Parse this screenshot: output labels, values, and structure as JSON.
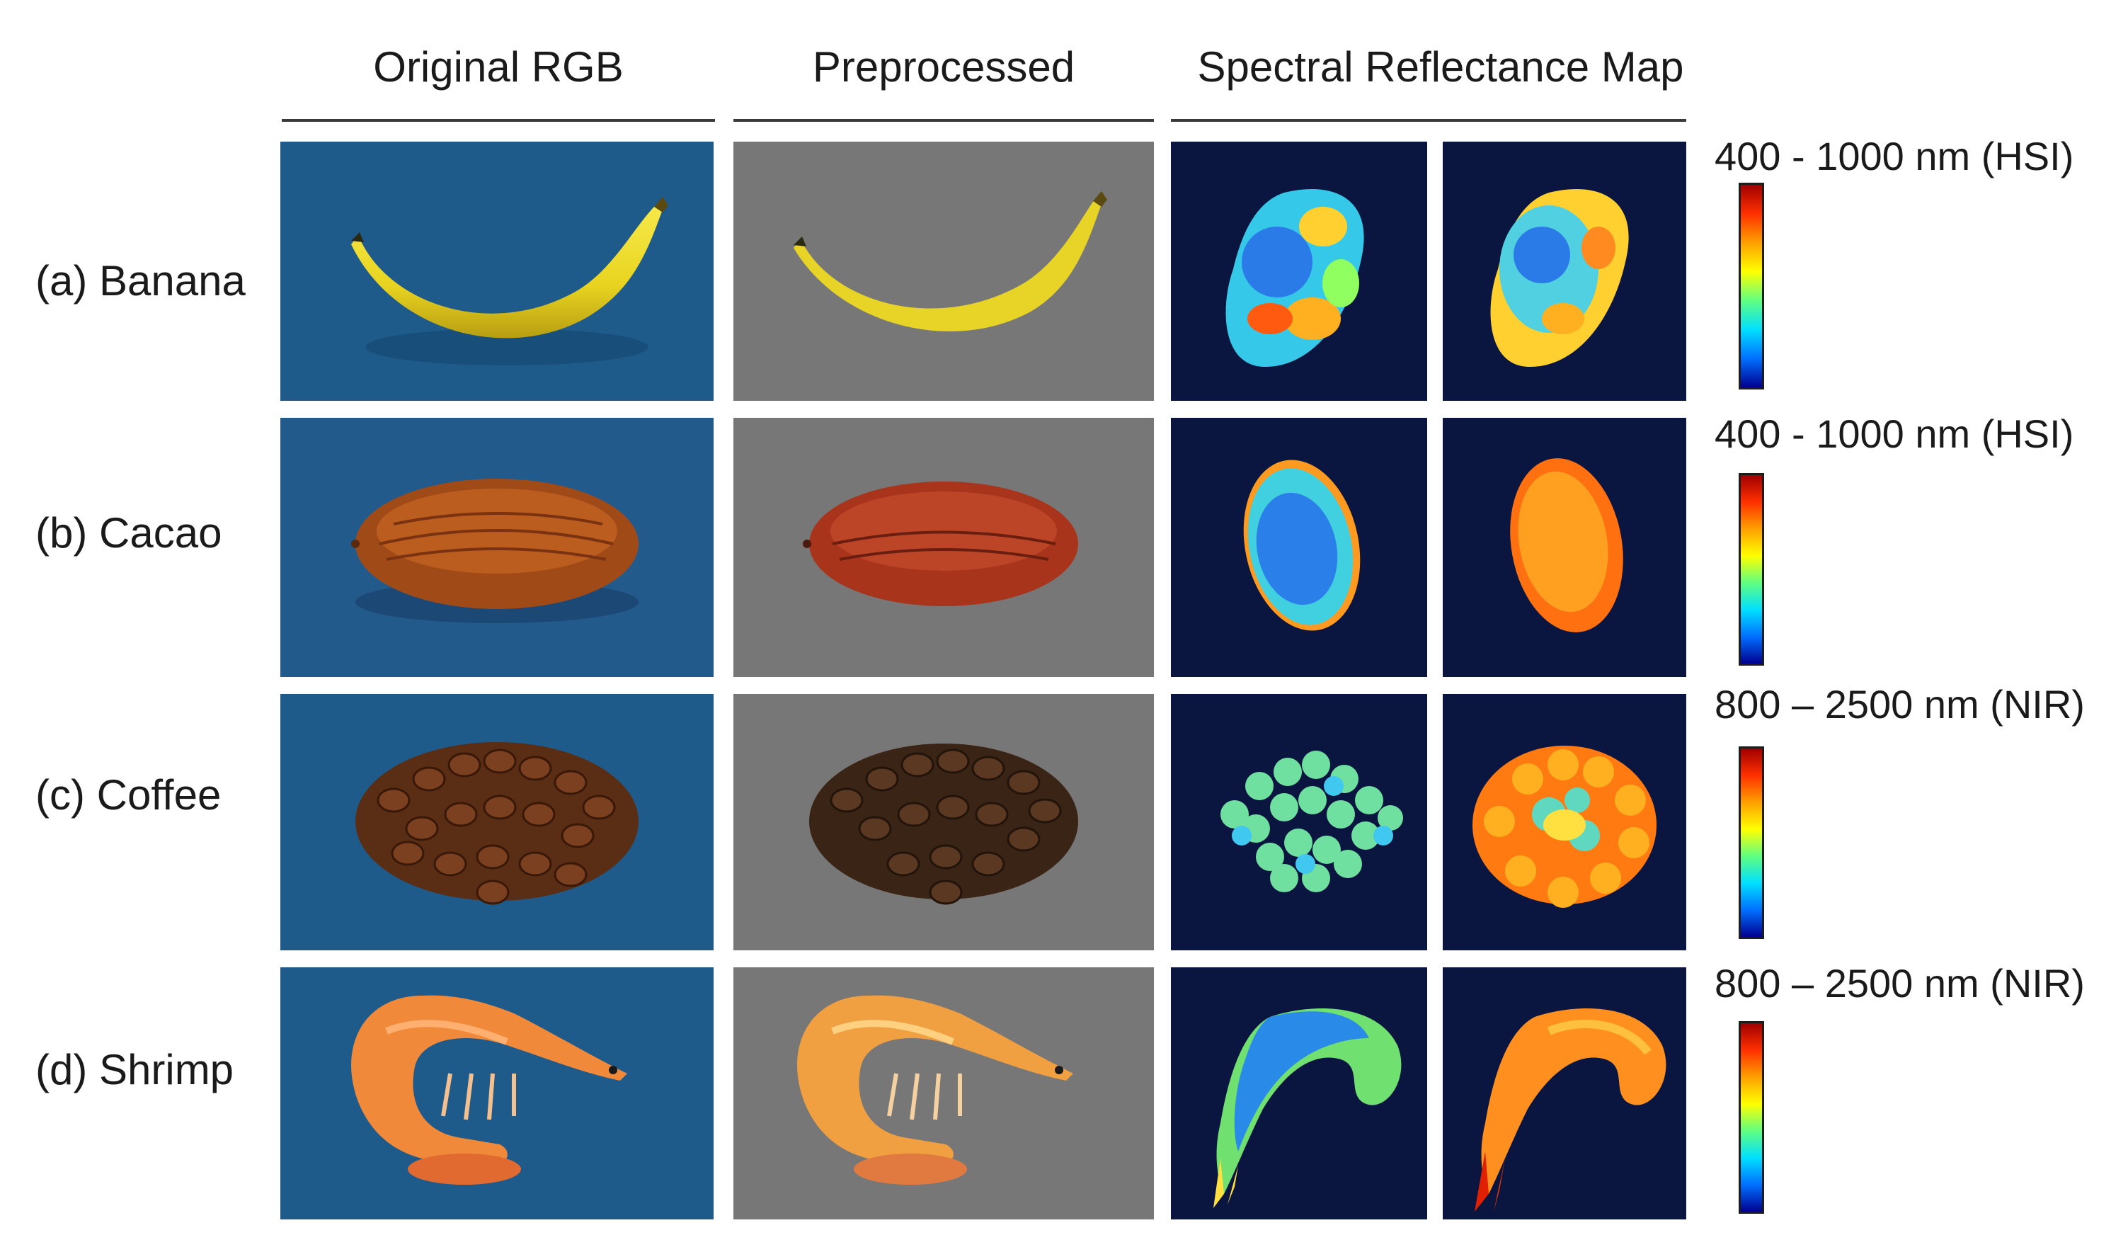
{
  "columns": {
    "original": "Original RGB",
    "preprocessed": "Preprocessed",
    "spectral": "Spectral Reflectance Map"
  },
  "rows": [
    {
      "label": "(a) Banana",
      "range": "400 - 1000 nm (HSI)"
    },
    {
      "label": "(b) Cacao",
      "range": "400 - 1000 nm (HSI)"
    },
    {
      "label": "(c) Coffee",
      "range": "800 – 2500 nm (NIR)"
    },
    {
      "label": "(d) Shrimp",
      "range": "800 – 2500 nm (NIR)"
    }
  ],
  "colors": {
    "rgb_background": "#1e5a8a",
    "preprocessed_background": "#777777",
    "spectral_background": "#0a1540",
    "colormap": [
      "#a00000",
      "#ff3000",
      "#ffa000",
      "#ffff00",
      "#60ff80",
      "#00e0ff",
      "#0070ff",
      "#000090"
    ]
  }
}
